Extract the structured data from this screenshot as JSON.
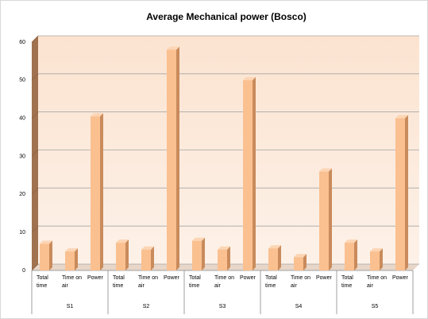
{
  "chart_data": {
    "type": "bar",
    "title": "Average Mechanical power (Bosco)",
    "categories": [
      "Total time",
      "Time on air",
      "Power",
      "Total time",
      "Time on air",
      "Power",
      "Total time",
      "Time on air",
      "Power",
      "Total time",
      "Time on air",
      "Power",
      "Total time",
      "Time on air",
      "Power"
    ],
    "groups": [
      "S1",
      "S2",
      "S3",
      "S4",
      "S5"
    ],
    "values": [
      7,
      5,
      40.5,
      7.3,
      5.5,
      58,
      7.8,
      5.5,
      50,
      5.8,
      3.5,
      26,
      7.3,
      5,
      40
    ],
    "color": "#fac090",
    "ylim": [
      0,
      60
    ],
    "yticks": [
      0,
      10,
      20,
      30,
      40,
      50,
      60
    ],
    "grid": true
  }
}
